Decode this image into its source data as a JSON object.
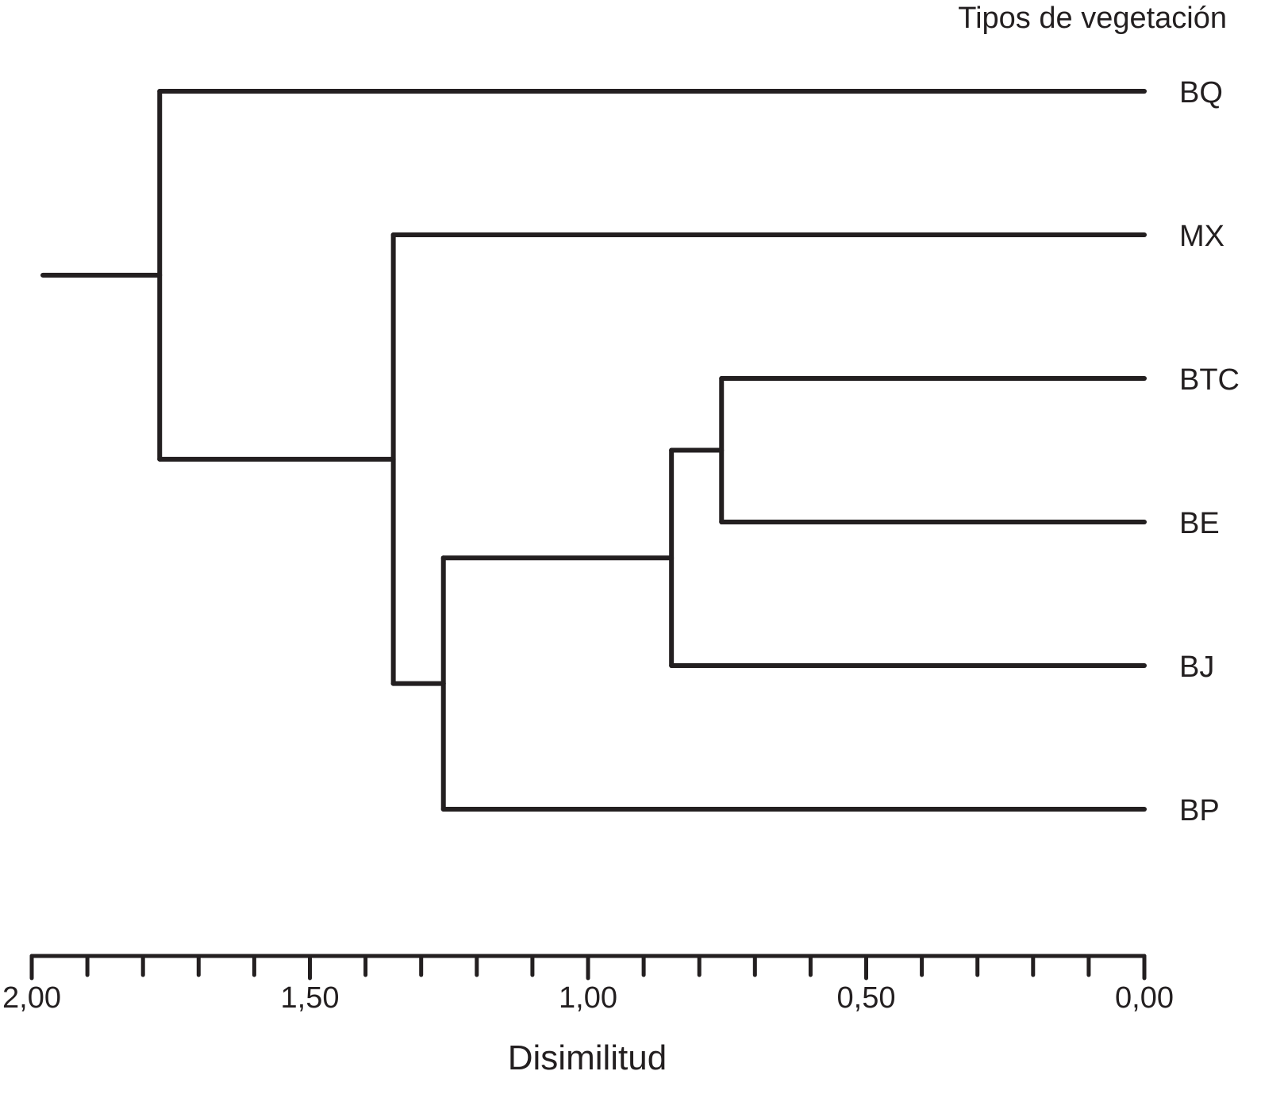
{
  "chart_data": {
    "type": "dendrogram",
    "title": "Tipos de vegetación",
    "xlabel": "Disimilitud",
    "ylabel": "",
    "xlim": [
      2.0,
      0.0
    ],
    "x_ticks": [
      2.0,
      1.5,
      1.0,
      0.5,
      0.0
    ],
    "x_tick_labels": [
      "2,00",
      "1,50",
      "1,00",
      "0,50",
      "0,00"
    ],
    "minor_tick_step": 0.1,
    "leaves": [
      "BQ",
      "MX",
      "BTC",
      "BE",
      "BJ",
      "BP"
    ],
    "leaf_height": 0.0,
    "root_stem_start": 1.98,
    "merges": [
      {
        "id": "BTC+BE",
        "left": "BTC",
        "right": "BE",
        "height": 0.76
      },
      {
        "id": "BTC+BE+BJ",
        "left": "BTC+BE",
        "right": "BJ",
        "height": 0.85
      },
      {
        "id": "BTC+BE+BJ+BP",
        "left": "BTC+BE+BJ",
        "right": "BP",
        "height": 1.26
      },
      {
        "id": "MX+rest",
        "left": "MX",
        "right": "BTC+BE+BJ+BP",
        "height": 1.35
      },
      {
        "id": "root",
        "left": "BQ",
        "right": "MX+rest",
        "height": 1.77
      }
    ]
  }
}
